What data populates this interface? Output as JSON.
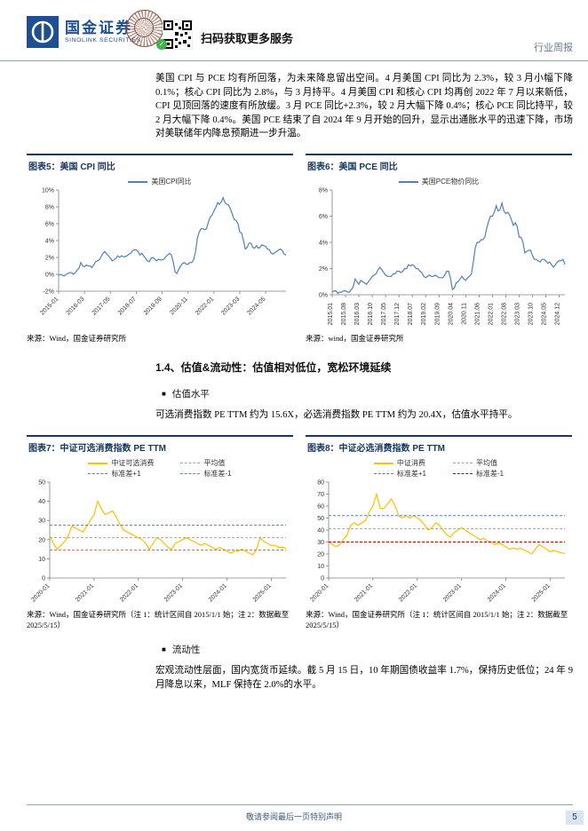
{
  "header": {
    "brand_cn": "国金证券",
    "brand_en": "SINOLINK SECURITIES",
    "qr_caption": "扫码获取更多服务",
    "doc_type": "行业周报"
  },
  "body": {
    "para1": "美国 CPI 与 PCE 均有所回落，为未来降息留出空间。4 月美国 CPI 同比为 2.3%，较 3 月小幅下降 0.1%；核心 CPI 同比为 2.8%，与 3 月持平。4 月美国 CPI 和核心 CPI 均再创 2022 年 7 月以来新低，CPI 见顶回落的速度有所放缓。3 月 PCE 同比+2.3%，较 2 月大幅下降 0.4%；核心 PCE 同比持平，较 2 月大幅下降 0.4%。美国 PCE 结束了自 2024 年 9 月开始的回升，显示出通胀水平的迅速下降，市场对美联储年内降息预期进一步升温。",
    "section_title": "1.4、估值&流动性：估值相对低位，宽松环境延续",
    "bullet1": "估值水平",
    "para2": "可选消费指数 PE TTM 约为 15.6X，必选消费指数 PE TTM 约为 20.4X，估值水平持平。",
    "bullet2": "流动性",
    "para3": "宏观流动性层面，国内宽货币延续。截 5 月 15 日，10 年期国债收益率 1.7%，保持历史低位；24 年 9 月降息以来，MLF 保持在 2.0%的水平。"
  },
  "figures": [
    {
      "title": "图表5：美国 CPI 同比",
      "source": "来源：Wind，国金证券研究所"
    },
    {
      "title": "图表6：美国 PCE 同比",
      "source": "来源：wind，国金证券研究所"
    },
    {
      "title": "图表7：中证可选消费指数 PE TTM",
      "source": "来源：Wind，国金证券研究所（注 1：统计区间自 2015/1/1 始；注 2：数据截至 2025/5/15）"
    },
    {
      "title": "图表8：中证必选消费指数 PE TTM",
      "source": "来源：Wind，国金证券研究所（注 1：统计区间自 2015/1/1 始；注 2：数据截至 2025/5/15）"
    }
  ],
  "footer": {
    "disclaimer": "敬请参阅最后一页特别声明",
    "page_number": "5"
  },
  "colors": {
    "brand_blue": "#1d4f91",
    "title_navy": "#17375e",
    "line_blue": "#4f81bd",
    "line_gold": "#ffc000",
    "line_gray": "#a6a6a6",
    "line_orange": "#e36c09",
    "line_red": "#c00000"
  },
  "chart_data": [
    {
      "type": "line",
      "title": "美国CPI同比",
      "x_start": "2015-01",
      "x_freq": "monthly",
      "ylim": [
        -2,
        10
      ],
      "yticks": [
        {
          "v": -2,
          "label": "-2%"
        },
        {
          "v": 0,
          "label": "0%"
        },
        {
          "v": 2,
          "label": "2%"
        },
        {
          "v": 4,
          "label": "4%"
        },
        {
          "v": 6,
          "label": "6%"
        },
        {
          "v": 8,
          "label": "8%"
        },
        {
          "v": 10,
          "label": "10%"
        }
      ],
      "xticks": [
        {
          "i": 0,
          "label": "2015-01"
        },
        {
          "i": 14,
          "label": "2016-03"
        },
        {
          "i": 28,
          "label": "2017-05"
        },
        {
          "i": 42,
          "label": "2018-07"
        },
        {
          "i": 56,
          "label": "2019-09"
        },
        {
          "i": 70,
          "label": "2020-11"
        },
        {
          "i": 84,
          "label": "2022-01"
        },
        {
          "i": 98,
          "label": "2023-03"
        },
        {
          "i": 112,
          "label": "2024-05"
        }
      ],
      "series": [
        {
          "name": "美国CPI同比",
          "color": "#4f81bd",
          "dash": false,
          "values": [
            -0.1,
            0.0,
            -0.1,
            -0.2,
            0.0,
            0.1,
            0.2,
            0.2,
            0.0,
            0.2,
            0.5,
            0.7,
            1.4,
            1.0,
            0.9,
            1.1,
            1.0,
            1.0,
            0.8,
            1.1,
            1.5,
            1.6,
            1.7,
            2.1,
            2.5,
            2.7,
            2.4,
            2.2,
            1.9,
            1.6,
            1.7,
            1.9,
            2.2,
            2.0,
            2.2,
            2.1,
            2.1,
            2.2,
            2.4,
            2.5,
            2.8,
            2.9,
            2.9,
            2.7,
            2.3,
            2.5,
            2.2,
            1.9,
            1.6,
            1.5,
            1.9,
            2.0,
            1.8,
            1.6,
            1.8,
            1.7,
            1.7,
            1.8,
            2.1,
            2.3,
            2.5,
            2.3,
            1.5,
            0.3,
            0.1,
            0.6,
            1.0,
            1.3,
            1.4,
            1.2,
            1.2,
            1.4,
            1.4,
            1.7,
            2.6,
            4.2,
            5.0,
            5.4,
            5.4,
            5.3,
            5.4,
            6.2,
            6.8,
            7.0,
            7.5,
            7.9,
            8.5,
            8.3,
            8.6,
            9.1,
            8.5,
            8.3,
            8.2,
            7.7,
            7.1,
            6.5,
            6.4,
            6.0,
            5.0,
            4.9,
            4.0,
            3.0,
            3.2,
            3.7,
            3.7,
            3.2,
            3.1,
            3.4,
            3.1,
            3.2,
            3.5,
            3.4,
            3.3,
            3.0,
            2.9,
            2.5,
            2.4,
            2.6,
            2.7,
            2.9,
            3.0,
            2.8,
            2.4,
            2.3
          ]
        }
      ]
    },
    {
      "type": "line",
      "title": "美国PCE物价同比",
      "x_start": "2015-01",
      "x_freq": "monthly",
      "ylim": [
        0,
        8
      ],
      "yticks": [
        {
          "v": 0,
          "label": "0%"
        },
        {
          "v": 2,
          "label": "2%"
        },
        {
          "v": 4,
          "label": "4%"
        },
        {
          "v": 6,
          "label": "6%"
        },
        {
          "v": 8,
          "label": "8%"
        }
      ],
      "xticks": [
        {
          "i": 0,
          "label": "2015.01"
        },
        {
          "i": 7,
          "label": "2015.08"
        },
        {
          "i": 14,
          "label": "2016.03"
        },
        {
          "i": 21,
          "label": "2016.10"
        },
        {
          "i": 28,
          "label": "2017.05"
        },
        {
          "i": 35,
          "label": "2017.12"
        },
        {
          "i": 42,
          "label": "2018.07"
        },
        {
          "i": 49,
          "label": "2019.02"
        },
        {
          "i": 56,
          "label": "2019.09"
        },
        {
          "i": 63,
          "label": "2020.04"
        },
        {
          "i": 70,
          "label": "2020.11"
        },
        {
          "i": 77,
          "label": "2021.06"
        },
        {
          "i": 84,
          "label": "2022.01"
        },
        {
          "i": 91,
          "label": "2022.08"
        },
        {
          "i": 98,
          "label": "2023.03"
        },
        {
          "i": 105,
          "label": "2023.10"
        },
        {
          "i": 112,
          "label": "2024.05"
        },
        {
          "i": 119,
          "label": "2024.12"
        }
      ],
      "series": [
        {
          "name": "美国PCE物价同比",
          "color": "#4f81bd",
          "dash": false,
          "values": [
            0.2,
            0.3,
            0.3,
            0.1,
            0.2,
            0.2,
            0.3,
            0.3,
            0.2,
            0.2,
            0.4,
            0.6,
            1.2,
            1.0,
            0.8,
            1.1,
            1.0,
            0.9,
            0.8,
            1.0,
            1.2,
            1.4,
            1.5,
            1.6,
            1.9,
            2.1,
            1.9,
            1.7,
            1.5,
            1.4,
            1.4,
            1.4,
            1.6,
            1.6,
            1.8,
            1.8,
            1.7,
            1.8,
            2.0,
            2.0,
            2.3,
            2.2,
            2.3,
            2.2,
            2.0,
            2.0,
            1.8,
            1.7,
            1.4,
            1.3,
            1.4,
            1.5,
            1.4,
            1.4,
            1.5,
            1.4,
            1.3,
            1.3,
            1.3,
            1.5,
            1.8,
            1.8,
            1.3,
            0.4,
            0.5,
            0.9,
            1.0,
            1.2,
            1.4,
            1.2,
            1.1,
            1.3,
            1.4,
            1.6,
            2.5,
            3.6,
            4.0,
            4.0,
            4.2,
            4.2,
            4.4,
            5.1,
            5.6,
            6.0,
            6.0,
            6.3,
            6.8,
            6.4,
            6.5,
            7.0,
            6.4,
            6.2,
            6.3,
            6.1,
            5.7,
            5.3,
            5.5,
            5.2,
            4.4,
            4.4,
            4.0,
            3.2,
            3.3,
            3.4,
            3.4,
            3.0,
            2.7,
            2.7,
            2.6,
            2.5,
            2.7,
            2.7,
            2.6,
            2.4,
            2.5,
            2.3,
            2.1,
            2.3,
            2.5,
            2.6,
            2.6,
            2.7,
            2.3
          ]
        }
      ]
    },
    {
      "type": "line",
      "title": "中证可选消费指数 PE TTM",
      "x_start": "2020-01",
      "x_freq": "monthly",
      "ylim": [
        0,
        50
      ],
      "yticks": [
        {
          "v": 0,
          "label": "0"
        },
        {
          "v": 10,
          "label": "10"
        },
        {
          "v": 20,
          "label": "20"
        },
        {
          "v": 30,
          "label": "30"
        },
        {
          "v": 40,
          "label": "40"
        },
        {
          "v": 50,
          "label": "50"
        }
      ],
      "xticks": [
        {
          "i": 0,
          "label": "2020-01"
        },
        {
          "i": 12,
          "label": "2021-01"
        },
        {
          "i": 24,
          "label": "2022-01"
        },
        {
          "i": 36,
          "label": "2023-01"
        },
        {
          "i": 48,
          "label": "2024-01"
        },
        {
          "i": 60,
          "label": "2025-01"
        }
      ],
      "series": [
        {
          "name": "中证可选消费",
          "color": "#ffc000",
          "dash": false,
          "values": [
            22,
            18,
            15,
            17,
            19,
            22,
            27,
            26,
            25,
            24,
            27,
            30,
            33,
            40,
            36,
            33,
            34,
            35,
            32,
            28,
            25,
            24,
            23,
            22,
            21,
            20,
            18,
            15,
            18,
            21,
            20,
            18,
            16,
            15,
            18,
            19,
            20,
            21,
            20,
            19,
            18,
            17,
            18,
            17,
            16,
            15,
            16,
            15,
            14,
            13,
            14,
            14,
            15,
            14,
            13,
            12,
            15,
            21,
            19,
            18,
            17,
            17,
            16,
            16,
            15.6
          ]
        },
        {
          "name": "平均值",
          "color": "#a6a6a6",
          "dash": true,
          "value": 21
        },
        {
          "name": "标准差+1",
          "color": "#4f81bd",
          "dash": true,
          "value": 27.5
        },
        {
          "name": "标准差-1",
          "color": "#e36c09",
          "dash": true,
          "value": 14.5
        }
      ]
    },
    {
      "type": "line",
      "title": "中证必选消费指数 PE TTM",
      "x_start": "2020-01",
      "x_freq": "monthly",
      "ylim": [
        0,
        80
      ],
      "yticks": [
        {
          "v": 0,
          "label": "0"
        },
        {
          "v": 10,
          "label": "10"
        },
        {
          "v": 20,
          "label": "20"
        },
        {
          "v": 30,
          "label": "30"
        },
        {
          "v": 40,
          "label": "40"
        },
        {
          "v": 50,
          "label": "50"
        },
        {
          "v": 60,
          "label": "60"
        },
        {
          "v": 70,
          "label": "70"
        },
        {
          "v": 80,
          "label": "80"
        }
      ],
      "xticks": [
        {
          "i": 0,
          "label": "2020-01"
        },
        {
          "i": 12,
          "label": "2021-01"
        },
        {
          "i": 24,
          "label": "2022-01"
        },
        {
          "i": 36,
          "label": "2023-01"
        },
        {
          "i": 48,
          "label": "2024-01"
        },
        {
          "i": 60,
          "label": "2025-01"
        }
      ],
      "series": [
        {
          "name": "中证消费",
          "color": "#ffc000",
          "dash": false,
          "values": [
            30,
            28,
            26,
            28,
            32,
            36,
            44,
            46,
            44,
            46,
            48,
            55,
            60,
            70,
            58,
            58,
            62,
            66,
            60,
            52,
            50,
            52,
            50,
            52,
            50,
            48,
            44,
            40,
            42,
            46,
            44,
            40,
            36,
            34,
            38,
            40,
            42,
            40,
            38,
            36,
            34,
            32,
            33,
            31,
            30,
            28,
            29,
            28,
            26,
            24,
            25,
            24,
            25,
            23,
            22,
            20,
            24,
            28,
            26,
            24,
            22,
            23,
            22,
            21,
            20.4
          ]
        },
        {
          "name": "平均值",
          "color": "#a6a6a6",
          "dash": true,
          "value": 41
        },
        {
          "name": "标准差+1",
          "color": "#4f81bd",
          "dash": true,
          "value": 52
        },
        {
          "name": "标准差-1",
          "color": "#c00000",
          "dash": true,
          "value": 30
        }
      ]
    }
  ]
}
